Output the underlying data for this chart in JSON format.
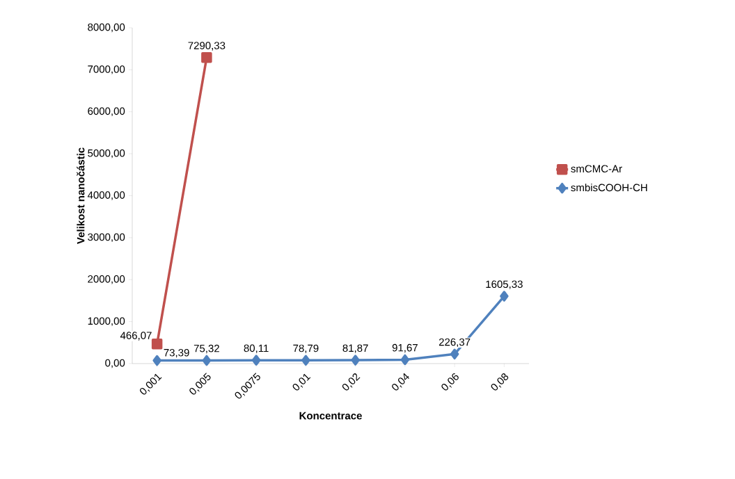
{
  "chart_data": {
    "type": "line",
    "xlabel": "Koncentrace",
    "ylabel": "Velikost nanočástic",
    "categories": [
      "0,001",
      "0,005",
      "0,0075",
      "0,01",
      "0,02",
      "0,04",
      "0,06",
      "0,08"
    ],
    "series": [
      {
        "name": "smCMC-Ar",
        "color": "#c0504d",
        "marker": "square",
        "values": [
          466.07,
          7290.33,
          null,
          null,
          null,
          null,
          null,
          null
        ],
        "value_labels": [
          "466,07",
          "7290,33",
          null,
          null,
          null,
          null,
          null,
          null
        ]
      },
      {
        "name": "smbisCOOH-CH",
        "color": "#4f81bd",
        "marker": "diamond",
        "values": [
          73.39,
          75.32,
          80.11,
          78.79,
          81.87,
          91.67,
          226.37,
          1605.33
        ],
        "value_labels": [
          "73,39",
          "75,32",
          "80,11",
          "78,79",
          "81,87",
          "91,67",
          "226,37",
          "1605,33"
        ]
      }
    ],
    "ylim": [
      0,
      8000
    ],
    "yticks": [
      {
        "value": 0,
        "label": "0,00"
      },
      {
        "value": 1000,
        "label": "1000,00"
      },
      {
        "value": 2000,
        "label": "2000,00"
      },
      {
        "value": 3000,
        "label": "3000,00"
      },
      {
        "value": 4000,
        "label": "4000,00"
      },
      {
        "value": 5000,
        "label": "5000,00"
      },
      {
        "value": 6000,
        "label": "6000,00"
      },
      {
        "value": 7000,
        "label": "7000,00"
      },
      {
        "value": 8000,
        "label": "8000,00"
      }
    ],
    "legend": "right",
    "grid": false,
    "line_style": "solid"
  }
}
